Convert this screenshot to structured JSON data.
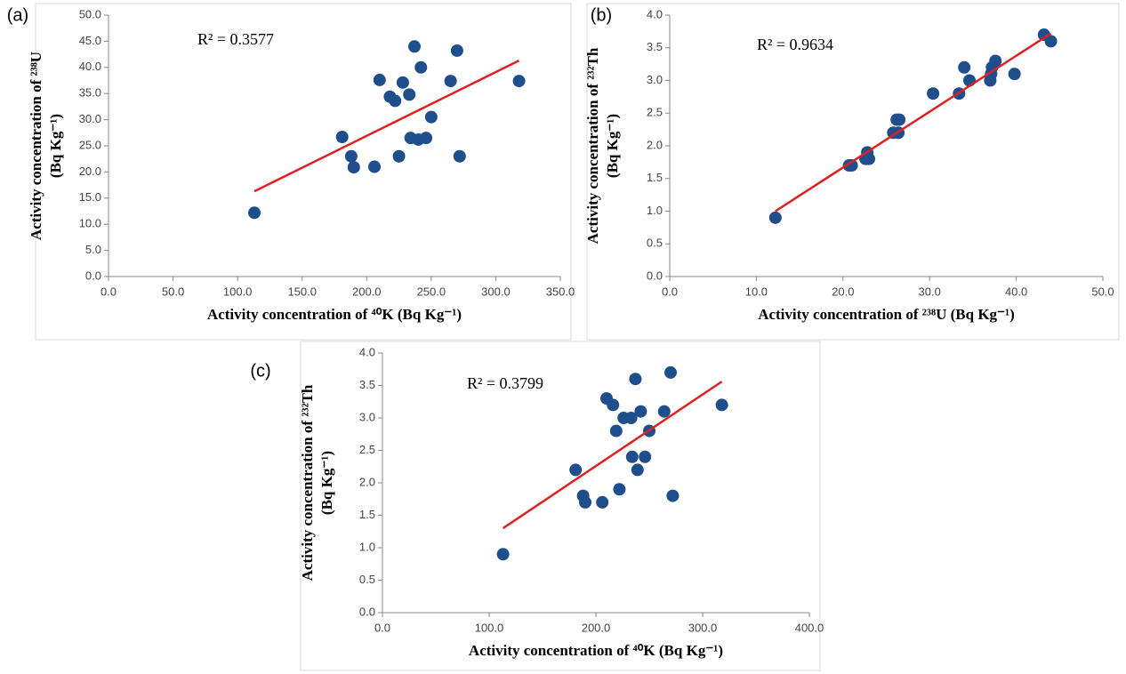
{
  "chart_data": [
    {
      "type": "scatter",
      "panel_label": "(a)",
      "annotation": "R² = 0.3577",
      "xlabel": "Activity concentration of ⁴⁰K (Bq Kg⁻¹)",
      "ylabel": [
        "Activity concentration of ²³⁸U",
        "(Bq Kg⁻¹)"
      ],
      "color": "#1f4e8c",
      "x": [
        113,
        181,
        188,
        190,
        206,
        210,
        218,
        222,
        225,
        228,
        233,
        234,
        237,
        240,
        242,
        246,
        250,
        265,
        270,
        272,
        318
      ],
      "values": [
        12.2,
        26.7,
        23.0,
        20.9,
        21.0,
        37.6,
        34.4,
        33.6,
        23.0,
        37.1,
        34.8,
        26.5,
        44.0,
        26.2,
        40.0,
        26.5,
        30.5,
        37.4,
        43.2,
        23.0,
        37.4
      ],
      "trendline": {
        "color": "#e02020",
        "x": [
          113,
          318
        ],
        "values": [
          16.3,
          41.3
        ]
      },
      "xlim": [
        0,
        350
      ],
      "ylim": [
        0,
        50
      ],
      "xticks": [
        {
          "value": 0,
          "label": "0.0"
        },
        {
          "value": 50,
          "label": "50.0"
        },
        {
          "value": 100,
          "label": "100.0"
        },
        {
          "value": 150,
          "label": "150.0"
        },
        {
          "value": 200,
          "label": "200.0"
        },
        {
          "value": 250,
          "label": "250.0"
        },
        {
          "value": 300,
          "label": "300.0"
        },
        {
          "value": 350,
          "label": "350.0"
        }
      ],
      "yticks": [
        {
          "value": 0,
          "label": "0.0"
        },
        {
          "value": 5,
          "label": "5.0"
        },
        {
          "value": 10,
          "label": "10.0"
        },
        {
          "value": 15,
          "label": "15.0"
        },
        {
          "value": 20,
          "label": "20.0"
        },
        {
          "value": 25,
          "label": "25.0"
        },
        {
          "value": 30,
          "label": "30.0"
        },
        {
          "value": 35,
          "label": "35.0"
        },
        {
          "value": 40,
          "label": "40.0"
        },
        {
          "value": 45,
          "label": "45.0"
        },
        {
          "value": 50,
          "label": "50.0"
        }
      ]
    },
    {
      "type": "scatter",
      "panel_label": "(b)",
      "annotation": "R² = 0.9634",
      "xlabel": "Activity concentration of ²³⁸U (Bq Kg⁻¹)",
      "ylabel": [
        "Activity concentration of ²³²Th",
        "(Bq Kg⁻¹)"
      ],
      "color": "#1f4e8c",
      "x": [
        12.2,
        20.7,
        21.0,
        22.6,
        22.8,
        23.0,
        25.8,
        26.2,
        26.4,
        26.5,
        30.4,
        33.4,
        34.0,
        34.6,
        37.0,
        37.1,
        37.2,
        37.6,
        39.8,
        43.2,
        44.0
      ],
      "values": [
        0.9,
        1.7,
        1.7,
        1.8,
        1.9,
        1.8,
        2.2,
        2.4,
        2.2,
        2.4,
        2.8,
        2.8,
        3.2,
        3.0,
        3.0,
        3.1,
        3.2,
        3.3,
        3.1,
        3.7,
        3.6
      ],
      "trendline": {
        "color": "#e02020",
        "x": [
          12.2,
          44.0
        ],
        "values": [
          1.0,
          3.72
        ]
      },
      "xlim": [
        0,
        50
      ],
      "ylim": [
        0,
        4
      ],
      "xticks": [
        {
          "value": 0,
          "label": "0.0"
        },
        {
          "value": 10,
          "label": "10.0"
        },
        {
          "value": 20,
          "label": "20.0"
        },
        {
          "value": 30,
          "label": "30.0"
        },
        {
          "value": 40,
          "label": "40.0"
        },
        {
          "value": 50,
          "label": "50.0"
        }
      ],
      "yticks": [
        {
          "value": 0,
          "label": "0.0"
        },
        0.5,
        {
          "value": 1,
          "label": "1.0"
        },
        1.5,
        {
          "value": 2,
          "label": "2.0"
        },
        2.5,
        {
          "value": 3,
          "label": "3.0"
        },
        3.5,
        {
          "value": 4,
          "label": "4.0"
        }
      ]
    },
    {
      "type": "scatter",
      "panel_label": "(c)",
      "annotation": "R² = 0.3799",
      "xlabel": "Activity concentration of ⁴⁰K (Bq Kg⁻¹)",
      "ylabel": [
        "Activity concentration of ²³²Th",
        "(Bq Kg⁻¹)"
      ],
      "color": "#1f4e8c",
      "x": [
        113,
        181,
        188,
        190,
        206,
        210,
        216,
        219,
        222,
        226,
        233,
        234,
        237,
        239,
        242,
        246,
        250,
        264,
        270,
        272,
        318
      ],
      "values": [
        0.9,
        2.2,
        1.8,
        1.7,
        1.7,
        3.3,
        3.2,
        2.8,
        1.9,
        3.0,
        3.0,
        2.4,
        3.6,
        2.2,
        3.1,
        2.4,
        2.8,
        3.1,
        3.7,
        1.8,
        3.2
      ],
      "trendline": {
        "color": "#e02020",
        "x": [
          113,
          318
        ],
        "values": [
          1.3,
          3.56
        ]
      },
      "xlim": [
        0,
        400
      ],
      "ylim": [
        0,
        4
      ],
      "xticks": [
        {
          "value": 0,
          "label": "0.0"
        },
        {
          "value": 100,
          "label": "100.0"
        },
        {
          "value": 200,
          "label": "200.0"
        },
        {
          "value": 300,
          "label": "300.0"
        },
        {
          "value": 400,
          "label": "400.0"
        }
      ],
      "yticks": [
        {
          "value": 0,
          "label": "0.0"
        },
        0.5,
        {
          "value": 1,
          "label": "1.0"
        },
        1.5,
        {
          "value": 2,
          "label": "2.0"
        },
        2.5,
        {
          "value": 3,
          "label": "3.0"
        },
        3.5,
        {
          "value": 4,
          "label": "4.0"
        }
      ]
    }
  ]
}
